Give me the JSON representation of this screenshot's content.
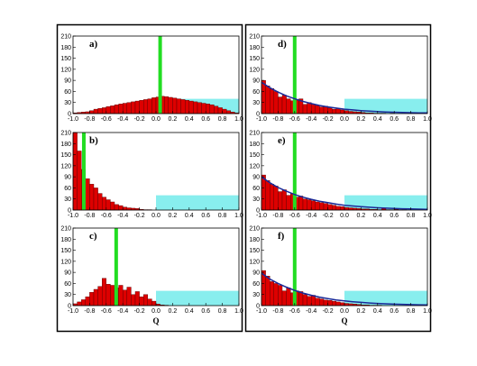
{
  "colors": {
    "bar": "#dd0000",
    "bar_edge": "#550000",
    "marker": "#22dd22",
    "region": "#88eeee",
    "fit_curve": "#1a2a99"
  },
  "chart_data": [
    {
      "type": "bar",
      "panel_label": "a)",
      "xlabel": "",
      "xlim": [
        -1.0,
        1.0
      ],
      "ylim": [
        0,
        210
      ],
      "xticks": [
        "-1.0",
        "-0.8",
        "-0.6",
        "-0.4",
        "-0.2",
        "0.0",
        "0.2",
        "0.4",
        "0.6",
        "0.8",
        "1.0"
      ],
      "yticks": [
        "0",
        "30",
        "60",
        "90",
        "120",
        "150",
        "180",
        "210"
      ],
      "bin_width": 0.05,
      "x": [
        -0.975,
        -0.925,
        -0.875,
        -0.825,
        -0.775,
        -0.725,
        -0.675,
        -0.625,
        -0.575,
        -0.525,
        -0.475,
        -0.425,
        -0.375,
        -0.325,
        -0.275,
        -0.225,
        -0.175,
        -0.125,
        -0.075,
        -0.025,
        0.025,
        0.075,
        0.125,
        0.175,
        0.225,
        0.275,
        0.325,
        0.375,
        0.425,
        0.475,
        0.525,
        0.575,
        0.625,
        0.675,
        0.725,
        0.775,
        0.825,
        0.875,
        0.925,
        0.975
      ],
      "values": [
        2,
        3,
        4,
        5,
        8,
        12,
        14,
        16,
        19,
        21,
        24,
        26,
        28,
        30,
        32,
        34,
        36,
        38,
        40,
        43,
        45,
        47,
        46,
        44,
        42,
        40,
        38,
        36,
        34,
        32,
        30,
        28,
        26,
        24,
        20,
        16,
        12,
        8,
        4,
        2
      ],
      "marker_x": 0.05,
      "highlight_region": {
        "x": [
          0.3,
          1.0
        ],
        "y": [
          0,
          40
        ]
      }
    },
    {
      "type": "bar",
      "panel_label": "b)",
      "xlabel": "",
      "xlim": [
        -1.0,
        1.0
      ],
      "ylim": [
        0,
        210
      ],
      "xticks": [
        "-1.0",
        "-0.8",
        "-0.6",
        "-0.4",
        "-0.2",
        "0.0",
        "0.2",
        "0.4",
        "0.6",
        "0.8",
        "1.0"
      ],
      "yticks": [
        "0",
        "30",
        "60",
        "90",
        "120",
        "150",
        "180",
        "210"
      ],
      "bin_width": 0.05,
      "x": [
        -0.975,
        -0.925,
        -0.875,
        -0.825,
        -0.775,
        -0.725,
        -0.675,
        -0.625,
        -0.575,
        -0.525,
        -0.475,
        -0.425,
        -0.375,
        -0.325,
        -0.275,
        -0.225,
        -0.175,
        -0.125,
        -0.075,
        -0.025
      ],
      "values": [
        210,
        160,
        110,
        85,
        70,
        60,
        45,
        35,
        28,
        22,
        15,
        12,
        8,
        6,
        5,
        4,
        2,
        1,
        1,
        0
      ],
      "marker_x": -0.87,
      "highlight_region": {
        "x": [
          0.0,
          1.0
        ],
        "y": [
          0,
          40
        ]
      }
    },
    {
      "type": "bar",
      "panel_label": "c)",
      "xlabel": "Q",
      "xlim": [
        -1.0,
        1.0
      ],
      "ylim": [
        0,
        210
      ],
      "xticks": [
        "-1.0",
        "-0.8",
        "-0.6",
        "-0.4",
        "-0.2",
        "0.0",
        "0.2",
        "0.4",
        "0.6",
        "0.8",
        "1.0"
      ],
      "yticks": [
        "0",
        "30",
        "60",
        "90",
        "120",
        "150",
        "180",
        "210"
      ],
      "bin_width": 0.05,
      "x": [
        -0.975,
        -0.925,
        -0.875,
        -0.825,
        -0.775,
        -0.725,
        -0.675,
        -0.625,
        -0.575,
        -0.525,
        -0.475,
        -0.425,
        -0.375,
        -0.325,
        -0.275,
        -0.225,
        -0.175,
        -0.125,
        -0.075,
        -0.025,
        0.025,
        0.075,
        0.125
      ],
      "values": [
        5,
        10,
        16,
        24,
        36,
        44,
        52,
        74,
        58,
        55,
        48,
        55,
        42,
        50,
        30,
        38,
        24,
        30,
        18,
        12,
        4,
        2,
        1
      ],
      "marker_x": -0.48,
      "highlight_region": {
        "x": [
          0.0,
          1.0
        ],
        "y": [
          0,
          40
        ]
      }
    },
    {
      "type": "bar",
      "panel_label": "d)",
      "xlabel": "",
      "xlim": [
        -1.0,
        1.0
      ],
      "ylim": [
        0,
        210
      ],
      "xticks": [
        "-1.0",
        "-0.8",
        "-0.6",
        "-0.4",
        "-0.2",
        "0.0",
        "0.2",
        "0.4",
        "0.6",
        "0.8",
        "1.0"
      ],
      "yticks": [
        "0",
        "30",
        "60",
        "90",
        "120",
        "150",
        "180",
        "210"
      ],
      "bin_width": 0.05,
      "x": [
        -0.975,
        -0.925,
        -0.875,
        -0.825,
        -0.775,
        -0.725,
        -0.675,
        -0.625,
        -0.575,
        -0.525,
        -0.475,
        -0.425,
        -0.375,
        -0.325,
        -0.275,
        -0.225,
        -0.175,
        -0.125,
        -0.075,
        -0.025,
        0.025,
        0.075,
        0.125,
        0.175,
        0.225,
        0.275,
        0.325,
        0.375,
        0.425,
        0.475,
        0.525,
        0.575
      ],
      "values": [
        90,
        75,
        68,
        60,
        45,
        50,
        40,
        35,
        38,
        40,
        25,
        30,
        25,
        22,
        18,
        20,
        15,
        12,
        14,
        10,
        8,
        6,
        5,
        4,
        3,
        2,
        2,
        1,
        1,
        1,
        0,
        1
      ],
      "marker_x": -0.6,
      "highlight_region": {
        "x": [
          0.0,
          1.0
        ],
        "y": [
          0,
          40
        ]
      },
      "fit": {
        "x": [
          -1.0,
          -0.9,
          -0.8,
          -0.7,
          -0.6,
          -0.5,
          -0.4,
          -0.3,
          -0.2,
          -0.1,
          0.0,
          0.1,
          0.2,
          0.3,
          0.4,
          0.5,
          0.6,
          0.7,
          0.8,
          0.9,
          1.0
        ],
        "y": [
          85,
          70,
          58,
          48,
          40,
          33,
          27,
          22,
          18,
          15,
          12,
          10,
          8,
          6.5,
          5.3,
          4.4,
          3.6,
          3,
          2.5,
          2,
          1.7
        ]
      }
    },
    {
      "type": "bar",
      "panel_label": "e)",
      "xlabel": "",
      "xlim": [
        -1.0,
        1.0
      ],
      "ylim": [
        0,
        210
      ],
      "xticks": [
        "-1.0",
        "-0.8",
        "-0.6",
        "-0.4",
        "-0.2",
        "0.0",
        "0.2",
        "0.4",
        "0.6",
        "0.8",
        "1.0"
      ],
      "yticks": [
        "0",
        "30",
        "60",
        "90",
        "120",
        "150",
        "180",
        "210"
      ],
      "bin_width": 0.05,
      "x": [
        -0.975,
        -0.925,
        -0.875,
        -0.825,
        -0.775,
        -0.725,
        -0.675,
        -0.625,
        -0.575,
        -0.525,
        -0.475,
        -0.425,
        -0.375,
        -0.325,
        -0.275,
        -0.225,
        -0.175,
        -0.125,
        -0.075,
        -0.025,
        0.025,
        0.075,
        0.125,
        0.175,
        0.225,
        0.275,
        0.325,
        0.375,
        0.425,
        0.475,
        0.525,
        0.575,
        0.625,
        0.675,
        0.725
      ],
      "values": [
        95,
        80,
        70,
        65,
        50,
        55,
        40,
        45,
        35,
        38,
        30,
        28,
        25,
        22,
        20,
        18,
        15,
        13,
        10,
        9,
        7,
        6,
        5,
        4,
        3,
        3,
        2,
        2,
        1,
        4,
        1,
        1,
        2,
        1,
        1
      ],
      "marker_x": -0.6,
      "highlight_region": {
        "x": [
          0.0,
          1.0
        ],
        "y": [
          0,
          40
        ]
      },
      "fit": {
        "x": [
          -1.0,
          -0.9,
          -0.8,
          -0.7,
          -0.6,
          -0.5,
          -0.4,
          -0.3,
          -0.2,
          -0.1,
          0.0,
          0.1,
          0.2,
          0.3,
          0.4,
          0.5,
          0.6,
          0.7,
          0.8,
          0.9,
          1.0
        ],
        "y": [
          90,
          74,
          61,
          51,
          42,
          35,
          29,
          24,
          20,
          16,
          13,
          11,
          9,
          7.5,
          6.2,
          5.1,
          4.2,
          3.5,
          2.9,
          2.4,
          2
        ]
      }
    },
    {
      "type": "bar",
      "panel_label": "f)",
      "xlabel": "Q",
      "xlim": [
        -1.0,
        1.0
      ],
      "ylim": [
        0,
        210
      ],
      "xticks": [
        "-1.0",
        "-0.8",
        "-0.6",
        "-0.4",
        "-0.2",
        "0.0",
        "0.2",
        "0.4",
        "0.6",
        "0.8",
        "1.0"
      ],
      "yticks": [
        "0",
        "30",
        "60",
        "90",
        "120",
        "150",
        "180",
        "210"
      ],
      "bin_width": 0.05,
      "x": [
        -0.975,
        -0.925,
        -0.875,
        -0.825,
        -0.775,
        -0.725,
        -0.675,
        -0.625,
        -0.575,
        -0.525,
        -0.475,
        -0.425,
        -0.375,
        -0.325,
        -0.275,
        -0.225,
        -0.175,
        -0.125,
        -0.075,
        -0.025,
        0.025,
        0.075,
        0.125,
        0.175,
        0.225,
        0.275,
        0.325,
        0.375,
        0.425
      ],
      "values": [
        95,
        80,
        65,
        60,
        55,
        40,
        48,
        35,
        40,
        38,
        30,
        25,
        28,
        20,
        18,
        15,
        14,
        12,
        10,
        8,
        6,
        5,
        4,
        3,
        2,
        2,
        1,
        1,
        1
      ],
      "marker_x": -0.6,
      "highlight_region": {
        "x": [
          0.0,
          1.0
        ],
        "y": [
          0,
          40
        ]
      },
      "fit": {
        "x": [
          -1.0,
          -0.9,
          -0.8,
          -0.7,
          -0.6,
          -0.5,
          -0.4,
          -0.3,
          -0.2,
          -0.1,
          0.0,
          0.1,
          0.2,
          0.3,
          0.4,
          0.5,
          0.6,
          0.7,
          0.8,
          0.9,
          1.0
        ],
        "y": [
          88,
          72,
          60,
          50,
          41,
          34,
          28,
          23,
          19,
          15.5,
          12.8,
          10.5,
          8.7,
          7.2,
          5.9,
          4.9,
          4,
          3.3,
          2.7,
          2.3,
          1.9
        ]
      }
    }
  ]
}
